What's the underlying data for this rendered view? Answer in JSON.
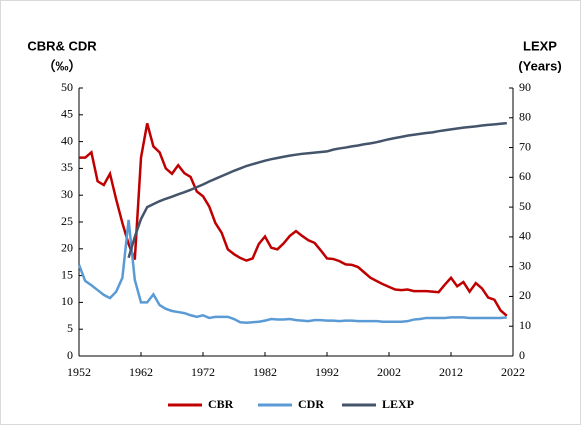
{
  "chart_data": {
    "type": "line",
    "y_label_lines": [
      "CBR& CDR",
      "（‰）"
    ],
    "y2_label_lines": [
      "LEXP",
      "(Years)"
    ],
    "x": [
      1952,
      1953,
      1954,
      1955,
      1956,
      1957,
      1958,
      1959,
      1960,
      1961,
      1962,
      1963,
      1964,
      1965,
      1966,
      1967,
      1968,
      1969,
      1970,
      1971,
      1972,
      1973,
      1974,
      1975,
      1976,
      1977,
      1978,
      1979,
      1980,
      1981,
      1982,
      1983,
      1984,
      1985,
      1986,
      1987,
      1988,
      1989,
      1990,
      1991,
      1992,
      1993,
      1994,
      1995,
      1996,
      1997,
      1998,
      1999,
      2000,
      2001,
      2002,
      2003,
      2004,
      2005,
      2006,
      2007,
      2008,
      2009,
      2010,
      2011,
      2012,
      2013,
      2014,
      2015,
      2016,
      2017,
      2018,
      2019,
      2020,
      2021
    ],
    "xlim": [
      1952,
      2022
    ],
    "xticks": [
      1952,
      1962,
      1972,
      1982,
      1992,
      2002,
      2012,
      2022
    ],
    "ylim": [
      0,
      50
    ],
    "yticks": [
      0,
      5,
      10,
      15,
      20,
      25,
      30,
      35,
      40,
      45,
      50
    ],
    "y2lim": [
      0,
      90
    ],
    "y2ticks": [
      0,
      10,
      20,
      30,
      40,
      50,
      60,
      70,
      80,
      90
    ],
    "series": [
      {
        "name": "CBR",
        "color": "#c00000",
        "values": [
          37,
          37,
          38,
          32.6,
          31.9,
          34,
          29.2,
          24.8,
          20.9,
          18,
          37,
          43.4,
          39.1,
          38,
          35,
          34,
          35.6,
          34.1,
          33.4,
          30.7,
          29.8,
          27.9,
          24.8,
          23,
          19.9,
          19,
          18.3,
          17.8,
          18.2,
          20.9,
          22.3,
          20.2,
          19.9,
          21,
          22.4,
          23.3,
          22.4,
          21.6,
          21.1,
          19.7,
          18.2,
          18.1,
          17.7,
          17.1,
          17,
          16.6,
          15.6,
          14.6,
          14,
          13.4,
          12.9,
          12.4,
          12.3,
          12.4,
          12.1,
          12.1,
          12.1,
          12,
          11.9,
          13.3,
          14.6,
          13,
          13.8,
          12,
          13.6,
          12.6,
          10.9,
          10.5,
          8.5,
          7.5
        ]
      },
      {
        "name": "CDR",
        "color": "#5b9bd5",
        "values": [
          17,
          14,
          13.2,
          12.3,
          11.4,
          10.8,
          12,
          14.6,
          25.4,
          14.2,
          10,
          10,
          11.5,
          9.5,
          8.8,
          8.4,
          8.2,
          8,
          7.6,
          7.3,
          7.6,
          7.1,
          7.3,
          7.3,
          7.3,
          6.9,
          6.3,
          6.2,
          6.3,
          6.4,
          6.6,
          6.9,
          6.8,
          6.8,
          6.9,
          6.7,
          6.6,
          6.5,
          6.7,
          6.7,
          6.6,
          6.6,
          6.5,
          6.6,
          6.6,
          6.5,
          6.5,
          6.5,
          6.5,
          6.4,
          6.4,
          6.4,
          6.4,
          6.5,
          6.8,
          6.9,
          7.1,
          7.1,
          7.1,
          7.1,
          7.2,
          7.2,
          7.2,
          7.1,
          7.1,
          7.1,
          7.1,
          7.1,
          7.1,
          7.2
        ]
      },
      {
        "name": "LEXP",
        "color": "#44546a",
        "axis": "y2",
        "values": [
          null,
          null,
          null,
          null,
          null,
          null,
          null,
          null,
          33,
          40,
          46,
          50,
          51,
          52,
          52.8,
          53.5,
          54.3,
          55,
          55.8,
          56.7,
          57.6,
          58.6,
          59.5,
          60.4,
          61.3,
          62.2,
          63,
          63.8,
          64.4,
          65,
          65.6,
          66.1,
          66.5,
          66.9,
          67.3,
          67.6,
          67.9,
          68.1,
          68.3,
          68.5,
          68.7,
          69.3,
          69.7,
          70,
          70.4,
          70.7,
          71.1,
          71.4,
          71.8,
          72.3,
          72.8,
          73.2,
          73.6,
          74,
          74.3,
          74.6,
          74.9,
          75.1,
          75.5,
          75.8,
          76.1,
          76.4,
          76.7,
          76.9,
          77.1,
          77.4,
          77.6,
          77.8,
          78,
          78.2
        ]
      }
    ]
  }
}
